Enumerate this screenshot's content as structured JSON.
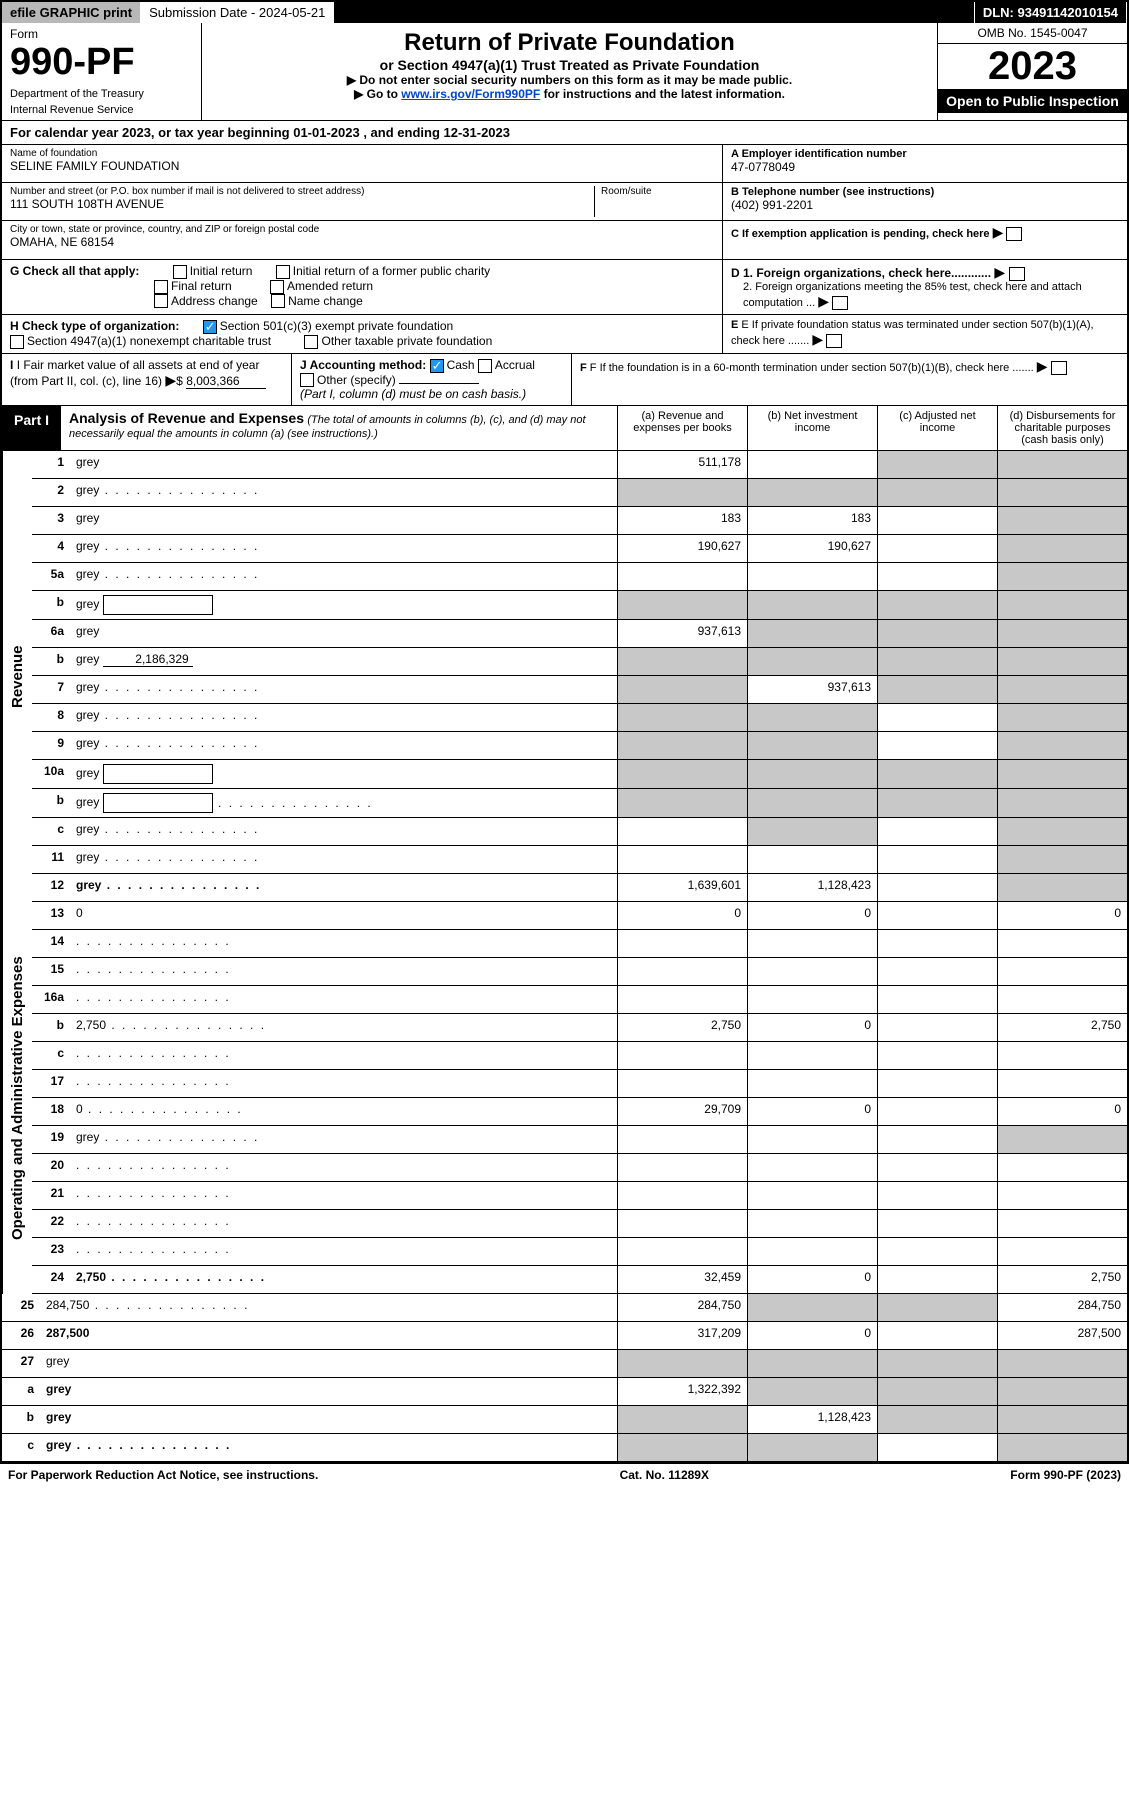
{
  "topbar": {
    "efile": "efile GRAPHIC print",
    "subdate_label": "Submission Date - 2024-05-21",
    "dln": "DLN: 93491142010154"
  },
  "header": {
    "form_label": "Form",
    "form_num": "990-PF",
    "dept1": "Department of the Treasury",
    "dept2": "Internal Revenue Service",
    "title": "Return of Private Foundation",
    "subtitle": "or Section 4947(a)(1) Trust Treated as Private Foundation",
    "instr1": "▶ Do not enter social security numbers on this form as it may be made public.",
    "instr2_pre": "▶ Go to ",
    "instr2_link": "www.irs.gov/Form990PF",
    "instr2_post": " for instructions and the latest information.",
    "omb": "OMB No. 1545-0047",
    "year": "2023",
    "open_insp": "Open to Public Inspection"
  },
  "cal_year": "For calendar year 2023, or tax year beginning 01-01-2023            , and ending 12-31-2023",
  "foundation": {
    "name_label": "Name of foundation",
    "name": "SELINE FAMILY FOUNDATION",
    "addr_label": "Number and street (or P.O. box number if mail is not delivered to street address)",
    "room_label": "Room/suite",
    "addr": "111 SOUTH 108TH AVENUE",
    "city_label": "City or town, state or province, country, and ZIP or foreign postal code",
    "city": "OMAHA, NE  68154",
    "ein_label": "A Employer identification number",
    "ein": "47-0778049",
    "tel_label": "B Telephone number (see instructions)",
    "tel": "(402) 991-2201",
    "c_label": "C If exemption application is pending, check here",
    "d1": "D 1. Foreign organizations, check here............",
    "d2": "2. Foreign organizations meeting the 85% test, check here and attach computation ...",
    "e": "E  If private foundation status was terminated under section 507(b)(1)(A), check here .......",
    "f": "F  If the foundation is in a 60-month termination under section 507(b)(1)(B), check here .......",
    "g_label": "G Check all that apply:",
    "g_opts": [
      "Initial return",
      "Initial return of a former public charity",
      "Final return",
      "Amended return",
      "Address change",
      "Name change"
    ],
    "h_label": "H Check type of organization:",
    "h_501c3": "Section 501(c)(3) exempt private foundation",
    "h_4947": "Section 4947(a)(1) nonexempt charitable trust",
    "h_other": "Other taxable private foundation",
    "i_label": "I Fair market value of all assets at end of year (from Part II, col. (c), line 16)",
    "i_val": "8,003,366",
    "j_label": "J Accounting method:",
    "j_cash": "Cash",
    "j_accrual": "Accrual",
    "j_other": "Other (specify)",
    "j_note": "(Part I, column (d) must be on cash basis.)"
  },
  "part1": {
    "label": "Part I",
    "title": "Analysis of Revenue and Expenses",
    "title_note": "(The total of amounts in columns (b), (c), and (d) may not necessarily equal the amounts in column (a) (see instructions).)",
    "col_a": "(a)   Revenue and expenses per books",
    "col_b": "(b)   Net investment income",
    "col_c": "(c)   Adjusted net income",
    "col_d": "(d)   Disbursements for charitable purposes (cash basis only)",
    "side_revenue": "Revenue",
    "side_expenses": "Operating and Administrative Expenses"
  },
  "lines": [
    {
      "n": "1",
      "d": "grey",
      "a": "511,178",
      "b": "",
      "c": "grey"
    },
    {
      "n": "2",
      "d": "grey",
      "dots": true,
      "a": "grey",
      "b": "grey",
      "c": "grey"
    },
    {
      "n": "3",
      "d": "grey",
      "a": "183",
      "b": "183",
      "c": ""
    },
    {
      "n": "4",
      "d": "grey",
      "dots": true,
      "a": "190,627",
      "b": "190,627",
      "c": ""
    },
    {
      "n": "5a",
      "d": "grey",
      "dots": true,
      "a": "",
      "b": "",
      "c": ""
    },
    {
      "n": "b",
      "d": "grey",
      "box": true,
      "a": "grey",
      "b": "grey",
      "c": "grey"
    },
    {
      "n": "6a",
      "d": "grey",
      "a": "937,613",
      "b": "grey",
      "c": "grey"
    },
    {
      "n": "b",
      "d": "grey",
      "ul": "2,186,329",
      "a": "grey",
      "b": "grey",
      "c": "grey"
    },
    {
      "n": "7",
      "d": "grey",
      "dots": true,
      "a": "grey",
      "b": "937,613",
      "c": "grey"
    },
    {
      "n": "8",
      "d": "grey",
      "dots": true,
      "a": "grey",
      "b": "grey",
      "c": ""
    },
    {
      "n": "9",
      "d": "grey",
      "dots": true,
      "a": "grey",
      "b": "grey",
      "c": ""
    },
    {
      "n": "10a",
      "d": "grey",
      "box": true,
      "a": "grey",
      "b": "grey",
      "c": "grey"
    },
    {
      "n": "b",
      "d": "grey",
      "dots": true,
      "box": true,
      "a": "grey",
      "b": "grey",
      "c": "grey"
    },
    {
      "n": "c",
      "d": "grey",
      "dots": true,
      "a": "",
      "b": "grey",
      "c": ""
    },
    {
      "n": "11",
      "d": "grey",
      "dots": true,
      "a": "",
      "b": "",
      "c": ""
    },
    {
      "n": "12",
      "d": "grey",
      "dots": true,
      "bold": true,
      "a": "1,639,601",
      "b": "1,128,423",
      "c": ""
    },
    {
      "n": "13",
      "d": "0",
      "a": "0",
      "b": "0",
      "c": ""
    },
    {
      "n": "14",
      "d": "",
      "dots": true,
      "a": "",
      "b": "",
      "c": ""
    },
    {
      "n": "15",
      "d": "",
      "dots": true,
      "a": "",
      "b": "",
      "c": ""
    },
    {
      "n": "16a",
      "d": "",
      "dots": true,
      "a": "",
      "b": "",
      "c": ""
    },
    {
      "n": "b",
      "d": "2,750",
      "dots": true,
      "a": "2,750",
      "b": "0",
      "c": ""
    },
    {
      "n": "c",
      "d": "",
      "dots": true,
      "a": "",
      "b": "",
      "c": ""
    },
    {
      "n": "17",
      "d": "",
      "dots": true,
      "a": "",
      "b": "",
      "c": ""
    },
    {
      "n": "18",
      "d": "0",
      "dots": true,
      "a": "29,709",
      "b": "0",
      "c": ""
    },
    {
      "n": "19",
      "d": "grey",
      "dots": true,
      "a": "",
      "b": "",
      "c": ""
    },
    {
      "n": "20",
      "d": "",
      "dots": true,
      "a": "",
      "b": "",
      "c": ""
    },
    {
      "n": "21",
      "d": "",
      "dots": true,
      "a": "",
      "b": "",
      "c": ""
    },
    {
      "n": "22",
      "d": "",
      "dots": true,
      "a": "",
      "b": "",
      "c": ""
    },
    {
      "n": "23",
      "d": "",
      "dots": true,
      "a": "",
      "b": "",
      "c": ""
    },
    {
      "n": "24",
      "d": "2,750",
      "dots": true,
      "bold": true,
      "a": "32,459",
      "b": "0",
      "c": ""
    },
    {
      "n": "25",
      "d": "284,750",
      "dots": true,
      "a": "284,750",
      "b": "grey",
      "c": "grey"
    },
    {
      "n": "26",
      "d": "287,500",
      "bold": true,
      "a": "317,209",
      "b": "0",
      "c": ""
    },
    {
      "n": "27",
      "d": "grey",
      "a": "grey",
      "b": "grey",
      "c": "grey"
    },
    {
      "n": "a",
      "d": "grey",
      "bold": true,
      "a": "1,322,392",
      "b": "grey",
      "c": "grey"
    },
    {
      "n": "b",
      "d": "grey",
      "bold": true,
      "a": "grey",
      "b": "1,128,423",
      "c": "grey"
    },
    {
      "n": "c",
      "d": "grey",
      "dots": true,
      "bold": true,
      "a": "grey",
      "b": "grey",
      "c": ""
    }
  ],
  "footer": {
    "left": "For Paperwork Reduction Act Notice, see instructions.",
    "mid": "Cat. No. 11289X",
    "right": "Form 990-PF (2023)"
  }
}
